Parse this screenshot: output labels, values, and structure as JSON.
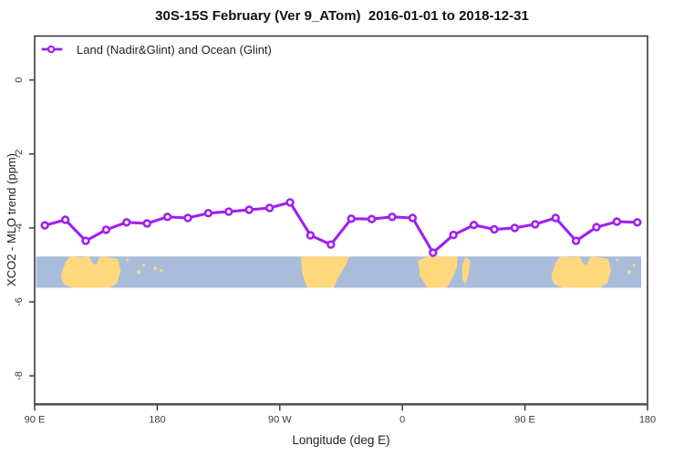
{
  "title": "30S-15S February (Ver 9_ATom)  2016-01-01 to 2018-12-31",
  "legend": {
    "label": "Land (Nadir&Glint) and Ocean (Glint)"
  },
  "axes": {
    "xlabel": "Longitude (deg E)",
    "ylabel": "XCO2 - MLO trend (ppm)"
  },
  "chart_data": {
    "type": "line",
    "title": "30S-15S February (Ver 9_ATom)  2016-01-01 to 2018-12-31",
    "xlabel": "Longitude (deg E)",
    "ylabel": "XCO2 - MLO trend (ppm)",
    "xlim": [
      90,
      540
    ],
    "ylim": [
      -8.77,
      1.19
    ],
    "grid": false,
    "legend_position": "top-left",
    "x_ticks": [
      {
        "pos": 90,
        "label": "90 E"
      },
      {
        "pos": 180,
        "label": "180"
      },
      {
        "pos": 270,
        "label": "90 W"
      },
      {
        "pos": 360,
        "label": "0"
      },
      {
        "pos": 450,
        "label": "90 E"
      },
      {
        "pos": 540,
        "label": "180"
      }
    ],
    "y_ticks": [
      {
        "pos": 0,
        "label": "0"
      },
      {
        "pos": -2,
        "label": "-2"
      },
      {
        "pos": -4,
        "label": "-4"
      },
      {
        "pos": -6,
        "label": "-6"
      },
      {
        "pos": -8,
        "label": "-8"
      }
    ],
    "series": [
      {
        "name": "Land (Nadir&Glint) and Ocean (Glint)",
        "color": "#A020F0",
        "marker": "open-circle",
        "x": [
          97.5,
          112.5,
          127.5,
          142.5,
          157.5,
          172.5,
          187.5,
          202.5,
          217.5,
          232.5,
          247.5,
          262.5,
          277.5,
          292.5,
          307.5,
          322.5,
          337.5,
          352.5,
          367.5,
          382.5,
          397.5,
          412.5,
          427.5,
          442.5,
          457.5,
          472.5,
          487.5,
          502.5,
          517.5,
          532.5
        ],
        "values": [
          -3.93,
          -3.78,
          -4.35,
          -4.05,
          -3.85,
          -3.88,
          -3.7,
          -3.73,
          -3.6,
          -3.56,
          -3.51,
          -3.46,
          -3.31,
          -4.2,
          -4.45,
          -3.75,
          -3.76,
          -3.7,
          -3.73,
          -4.67,
          -4.19,
          -3.92,
          -4.04,
          -4.0,
          -3.9,
          -3.73,
          -4.35,
          -3.98,
          -3.83,
          -3.85
        ]
      }
    ],
    "map_band": {
      "description": "world map strip of the 30S-15S latitude band",
      "y_top_value": -4.77,
      "y_bottom_value": -5.62,
      "ocean_color": "#A9BDDB",
      "land_color": "#FFD87E",
      "land": [
        {
          "name": "australia",
          "occurrences": [
            0,
            360
          ],
          "points": [
            [
              109.5,
              0.6
            ],
            [
              112.5,
              0.2
            ],
            [
              116,
              0.0
            ],
            [
              124,
              0.03
            ],
            [
              130,
              0.0
            ],
            [
              132.5,
              0.22
            ],
            [
              135.5,
              0.28
            ],
            [
              137.5,
              0.03
            ],
            [
              140,
              0.0
            ],
            [
              151,
              0.08
            ],
            [
              153.2,
              0.45
            ],
            [
              150.5,
              0.85
            ],
            [
              145,
              1.0
            ],
            [
              118,
              1.0
            ],
            [
              112,
              0.9
            ],
            [
              109.8,
              0.75
            ]
          ]
        },
        {
          "name": "south-america",
          "occurrences": [
            0
          ],
          "points": [
            [
              285.5,
              0.0
            ],
            [
              321,
              0.0
            ],
            [
              318,
              0.3
            ],
            [
              312.5,
              0.7
            ],
            [
              309.5,
              1.0
            ],
            [
              290,
              1.0
            ],
            [
              286.5,
              0.55
            ]
          ]
        },
        {
          "name": "africa",
          "occurrences": [
            0
          ],
          "points": [
            [
              371.5,
              0.15
            ],
            [
              378,
              0.0
            ],
            [
              400.5,
              0.0
            ],
            [
              400,
              0.35
            ],
            [
              396,
              0.75
            ],
            [
              392.5,
              1.0
            ],
            [
              378.5,
              1.0
            ],
            [
              373,
              0.65
            ]
          ]
        },
        {
          "name": "madagascar",
          "occurrences": [
            0
          ],
          "points": [
            [
              403.8,
              0.3
            ],
            [
              406.3,
              0.02
            ],
            [
              409.8,
              0.12
            ],
            [
              408.8,
              0.55
            ],
            [
              406.2,
              0.88
            ],
            [
              404.2,
              0.75
            ]
          ]
        }
      ],
      "islands": [
        [
          147,
          0.12,
          1.8
        ],
        [
          151,
          0.2,
          1.4
        ],
        [
          158,
          0.12,
          1.4
        ],
        [
          166.5,
          0.5,
          2.0
        ],
        [
          170,
          0.28,
          1.5
        ],
        [
          178.5,
          0.38,
          2.0
        ],
        [
          183,
          0.45,
          1.6
        ],
        [
          398,
          0.1,
          1.4
        ]
      ]
    },
    "style": {
      "box_color": "#2f2f2f",
      "bottom_axis_color": "#555555",
      "tick_label_color": "#3c3c3c",
      "line_width": 3.1,
      "marker_radius": 3.4,
      "marker_stroke": 2.6
    }
  }
}
